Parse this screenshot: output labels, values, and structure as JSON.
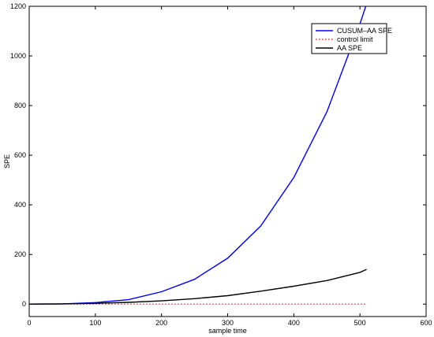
{
  "chart_data": {
    "type": "line",
    "title": "",
    "xlabel": "sample time",
    "ylabel": "SPE",
    "xlim": [
      0,
      600
    ],
    "ylim": [
      -50,
      1200
    ],
    "xticks": [
      0,
      100,
      200,
      300,
      400,
      500,
      600
    ],
    "yticks": [
      0,
      200,
      400,
      600,
      800,
      1000,
      1200
    ],
    "grid": false,
    "legend_position": "top-right",
    "series": [
      {
        "name": "CUSUM–AA SPE",
        "color": "#0000ff",
        "style": "solid",
        "x": [
          0,
          50,
          100,
          150,
          200,
          250,
          300,
          350,
          400,
          450,
          500,
          520
        ],
        "y": [
          0,
          1,
          6,
          18,
          50,
          100,
          185,
          315,
          510,
          775,
          1130,
          1290
        ]
      },
      {
        "name": "control limit",
        "color": "#ff0000",
        "style": "dotted",
        "x": [
          0,
          510
        ],
        "y": [
          0,
          0
        ]
      },
      {
        "name": "AA SPE",
        "color": "#000000",
        "style": "solid",
        "x": [
          0,
          50,
          100,
          150,
          200,
          250,
          300,
          350,
          400,
          450,
          500,
          510
        ],
        "y": [
          0,
          1,
          3,
          7,
          13,
          22,
          34,
          52,
          72,
          95,
          128,
          140
        ]
      }
    ]
  }
}
